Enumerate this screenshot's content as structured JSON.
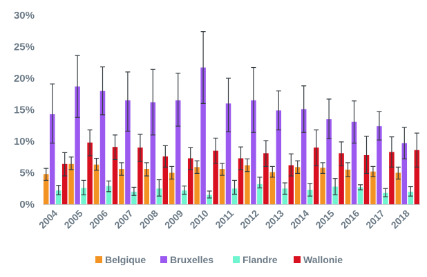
{
  "chart_data": {
    "type": "bar",
    "title": "",
    "xlabel": "",
    "ylabel": "",
    "ylim": [
      0,
      30
    ],
    "yticks": [
      "0%",
      "5%",
      "10%",
      "15%",
      "20%",
      "25%",
      "30%"
    ],
    "grid": false,
    "legend_position": "bottom",
    "categories": [
      "2004",
      "2005",
      "2006",
      "2007",
      "2008",
      "2009",
      "2010",
      "2011",
      "2012",
      "2013",
      "2014",
      "2015",
      "2016",
      "2017",
      "2018"
    ],
    "series": [
      {
        "name": "Belgique",
        "color": "#f39323",
        "values": [
          4.8,
          6.4,
          6.3,
          5.6,
          5.6,
          5.0,
          5.9,
          5.6,
          6.2,
          5.1,
          5.9,
          5.8,
          5.5,
          5.2,
          5.0
        ],
        "error_low": [
          3.8,
          5.5,
          5.4,
          4.6,
          4.5,
          4.0,
          4.9,
          4.6,
          5.2,
          4.3,
          4.9,
          4.9,
          4.4,
          4.4,
          4.0
        ],
        "error_high": [
          5.7,
          7.5,
          7.3,
          6.6,
          6.6,
          6.0,
          6.9,
          6.5,
          7.2,
          6.0,
          6.9,
          6.6,
          6.6,
          6.0,
          5.9
        ]
      },
      {
        "name": "Bruxelles",
        "color": "#9b59f0",
        "values": [
          14.3,
          18.7,
          18.0,
          16.5,
          16.2,
          16.5,
          21.7,
          16.0,
          16.5,
          14.9,
          15.1,
          13.5,
          13.1,
          12.4,
          9.7
        ],
        "error_low": [
          9.7,
          13.8,
          14.2,
          11.6,
          11.0,
          12.4,
          16.0,
          11.5,
          11.4,
          11.8,
          11.4,
          10.4,
          9.7,
          10.2,
          7.2
        ],
        "error_high": [
          19.1,
          23.6,
          21.8,
          21.0,
          21.4,
          20.8,
          27.4,
          20.0,
          21.7,
          18.0,
          18.8,
          16.7,
          16.4,
          14.7,
          12.2
        ]
      },
      {
        "name": "Flandre",
        "color": "#70f5d0",
        "values": [
          2.2,
          2.6,
          2.9,
          2.0,
          2.5,
          2.2,
          1.5,
          2.5,
          3.2,
          2.5,
          2.3,
          2.8,
          2.7,
          1.8,
          2.0
        ],
        "error_low": [
          1.5,
          1.5,
          2.0,
          1.4,
          1.3,
          1.6,
          1.0,
          1.6,
          2.6,
          1.6,
          1.3,
          1.5,
          2.3,
          1.2,
          1.3
        ],
        "error_high": [
          3.0,
          3.8,
          3.7,
          2.7,
          3.9,
          2.9,
          2.1,
          3.8,
          4.3,
          3.4,
          3.3,
          4.1,
          3.1,
          2.5,
          2.8
        ]
      },
      {
        "name": "Wallonie",
        "color": "#d91020",
        "values": [
          6.4,
          9.8,
          9.1,
          9.0,
          7.6,
          7.3,
          8.5,
          7.3,
          8.1,
          6.2,
          9.0,
          8.1,
          7.8,
          8.3,
          8.6
        ],
        "error_low": [
          4.5,
          7.7,
          7.1,
          6.8,
          5.9,
          5.5,
          6.5,
          5.5,
          6.0,
          4.5,
          6.1,
          6.1,
          4.9,
          5.9,
          5.9
        ],
        "error_high": [
          8.2,
          11.8,
          11.0,
          11.1,
          9.3,
          9.0,
          10.5,
          9.1,
          10.1,
          8.0,
          11.8,
          9.9,
          10.8,
          10.7,
          11.3
        ]
      }
    ]
  }
}
